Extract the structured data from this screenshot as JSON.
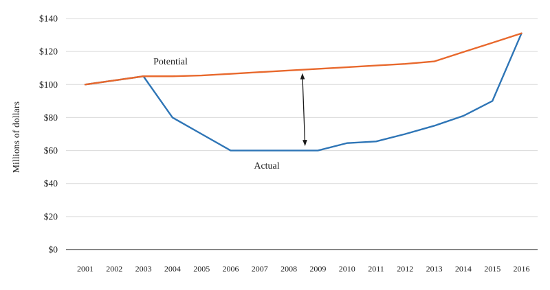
{
  "chart_data": {
    "type": "line",
    "title": "",
    "ylabel": "Millions of dollars",
    "xlabel": "",
    "ylim": [
      0,
      140
    ],
    "ytick_step": 20,
    "ytick_labels": [
      "$0",
      "$20",
      "$40",
      "$60",
      "$80",
      "$100",
      "$120",
      "$140"
    ],
    "grid": "horizontal",
    "legend": "inline-annotations",
    "x": [
      2001,
      2002,
      2003,
      2004,
      2005,
      2006,
      2007,
      2008,
      2009,
      2010,
      2011,
      2012,
      2013,
      2014,
      2015,
      2016
    ],
    "series": [
      {
        "name": "Potential",
        "color": "#E8682C",
        "values": [
          100,
          102.5,
          105,
          105,
          105.5,
          106.5,
          107.5,
          108.5,
          109.5,
          110.5,
          111.5,
          112.5,
          114,
          119.7,
          125.3,
          131
        ]
      },
      {
        "name": "Actual",
        "color": "#2E75B6",
        "values": [
          100,
          102.5,
          105,
          80,
          70,
          60,
          60,
          60,
          60,
          64.5,
          65.5,
          70,
          75,
          81,
          90,
          131
        ]
      }
    ],
    "annotations": {
      "potential_label": "Potential",
      "actual_label": "Actual",
      "gap_arrow": {
        "x": 2008.5,
        "from_series": "Actual",
        "to_series": "Potential",
        "style": "double-headed vertical arrow",
        "color": "#1a1a1a"
      }
    },
    "colors": {
      "grid": "#D9D9D9",
      "axis": "#404040",
      "text": "#1A1A1A",
      "background": "#FFFFFF"
    }
  }
}
